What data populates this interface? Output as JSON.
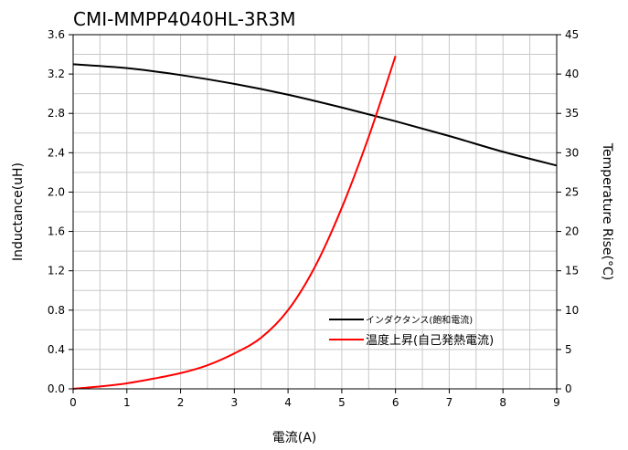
{
  "chart_data": {
    "type": "line",
    "title": "CMI-MMPP4040HL-3R3M",
    "xlabel": "電流(A)",
    "ylabel": "Inductance(uH)",
    "y2label": "Temperature Rise(°C)",
    "xlim": [
      0,
      9
    ],
    "ylim": [
      0,
      3.6
    ],
    "y2lim": [
      0,
      45
    ],
    "x_ticks": [
      "0",
      "1",
      "2",
      "3",
      "4",
      "5",
      "6",
      "7",
      "8",
      "9"
    ],
    "y_ticks": [
      "0.0",
      "0.4",
      "0.8",
      "1.2",
      "1.6",
      "2.0",
      "2.4",
      "2.8",
      "3.2",
      "3.6"
    ],
    "y2_ticks": [
      "0",
      "5",
      "10",
      "15",
      "20",
      "25",
      "30",
      "35",
      "40",
      "45"
    ],
    "grid": true,
    "legend_position": "lower-right",
    "series": [
      {
        "name": "インダクタンス(飽和電流)",
        "axis": "left",
        "color": "#000000",
        "x": [
          0,
          1,
          2,
          3,
          4,
          5,
          6,
          7,
          8,
          9
        ],
        "y": [
          3.3,
          3.26,
          3.19,
          3.1,
          2.99,
          2.86,
          2.72,
          2.57,
          2.41,
          2.27
        ]
      },
      {
        "name": "温度上昇(自己発熱電流)",
        "axis": "right",
        "color": "#ff0000",
        "x": [
          0,
          0.5,
          1,
          1.5,
          2,
          2.5,
          3,
          3.5,
          4,
          4.5,
          5,
          5.5,
          6
        ],
        "y": [
          0,
          0.3,
          0.7,
          1.3,
          2.0,
          3.0,
          4.5,
          6.5,
          10.0,
          15.5,
          23.0,
          32.0,
          42.3
        ]
      }
    ]
  }
}
